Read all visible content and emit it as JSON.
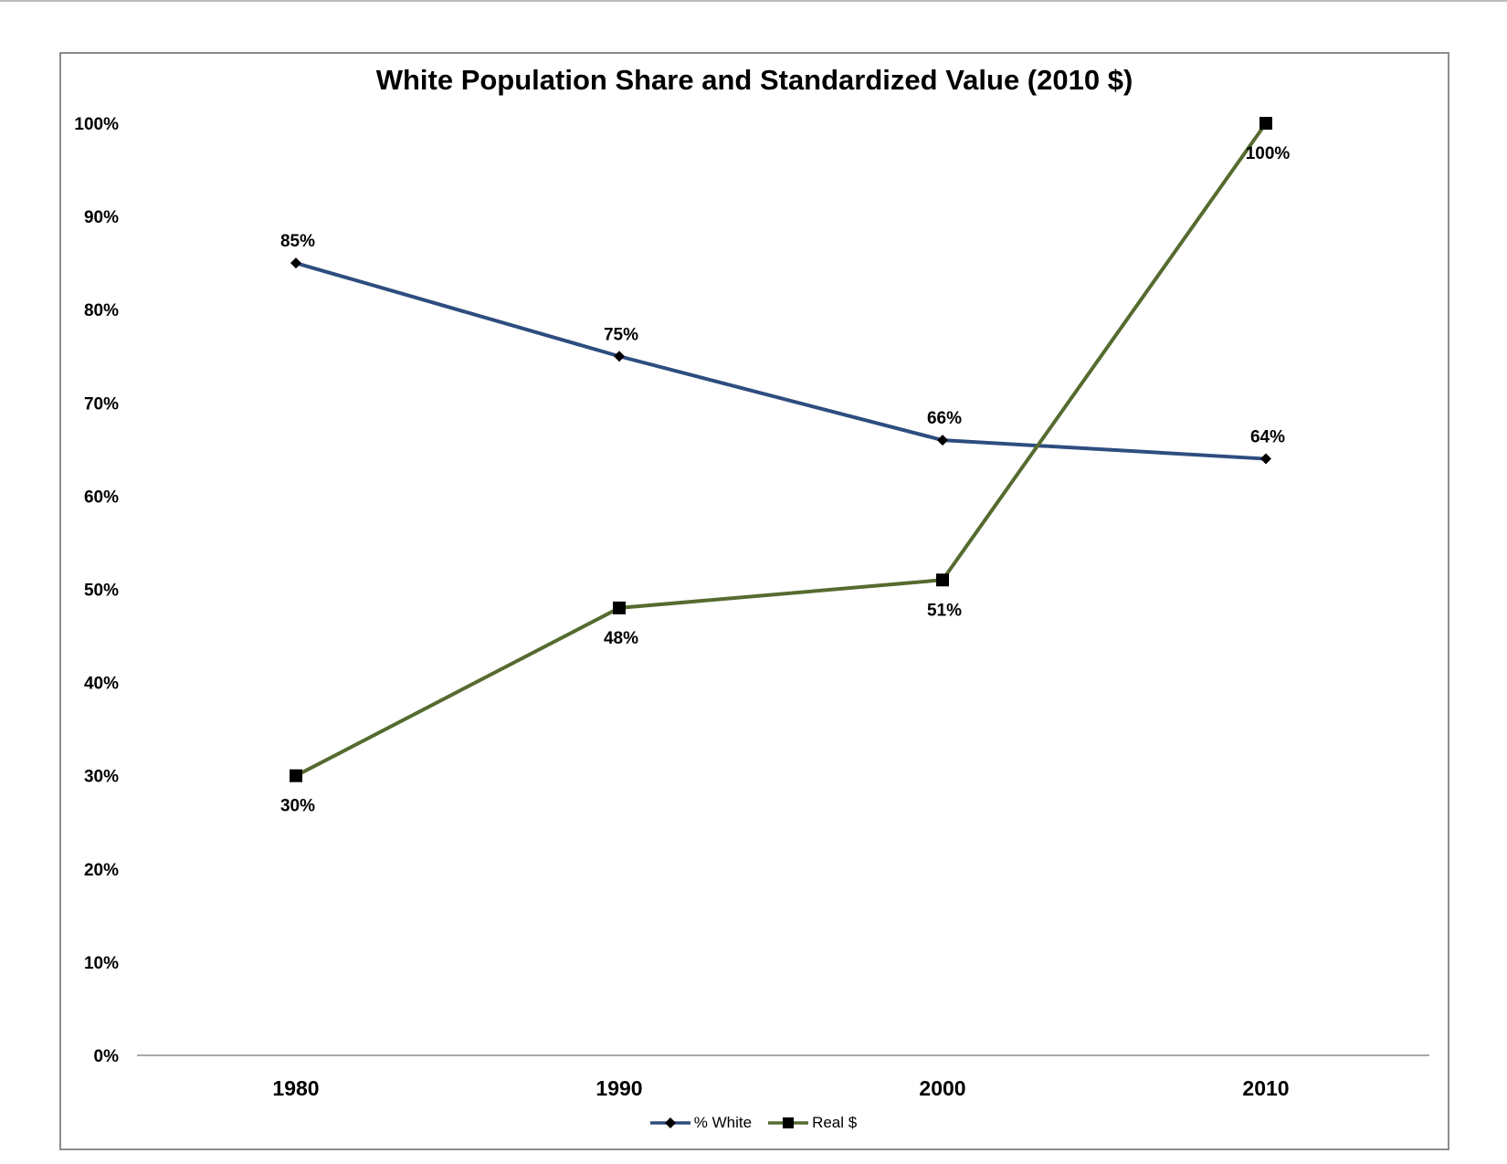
{
  "chart_data": {
    "type": "line",
    "title": "White Population Share and Standardized Value (2010 $)",
    "xlabel": "",
    "ylabel": "",
    "categories": [
      "1980",
      "1990",
      "2000",
      "2010"
    ],
    "ylim": [
      0,
      100
    ],
    "y_ticks": [
      "0%",
      "10%",
      "20%",
      "30%",
      "40%",
      "50%",
      "60%",
      "70%",
      "80%",
      "90%",
      "100%"
    ],
    "grid": false,
    "legend_position": "bottom",
    "series": [
      {
        "name": "% White",
        "values": [
          85,
          75,
          66,
          64
        ],
        "labels": [
          "85%",
          "75%",
          "66%",
          "64%"
        ],
        "color": "#2e4d7f",
        "marker": "diamond",
        "label_position": "above"
      },
      {
        "name": "Real $",
        "values": [
          30,
          48,
          51,
          100
        ],
        "labels": [
          "30%",
          "48%",
          "51%",
          "100%"
        ],
        "color": "#556b2f",
        "marker": "square",
        "label_position": "below"
      }
    ]
  }
}
